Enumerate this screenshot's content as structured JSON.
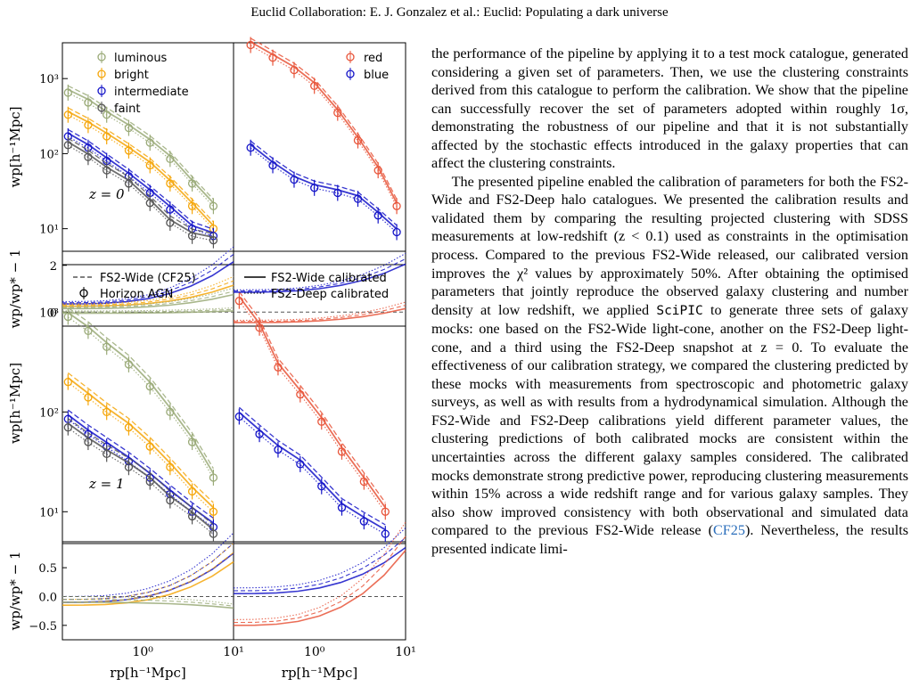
{
  "header": "Euclid Collaboration: E. J. Gonzalez et al.: Euclid: Populating a dark universe",
  "figure": {
    "legend_lum": [
      "luminous",
      "bright",
      "intermediate",
      "faint"
    ],
    "legend_col": [
      "red",
      "blue"
    ],
    "legend_lines": {
      "fs2wide_cf25": "FS2-Wide (CF25)",
      "horizon": "Horizon AGN",
      "fs2wide_cal": "FS2-Wide calibrated",
      "fs2deep_cal": "FS2-Deep calibrated"
    },
    "z_labels": [
      "z = 0",
      "z = 1"
    ],
    "ylabel_main": "wp[h⁻¹Mpc]",
    "ylabel_ratio": "wp/wp* − 1",
    "xlabel": "rp[h⁻¹Mpc]",
    "y_ticks_main": [
      "10¹",
      "10²",
      "10³"
    ],
    "ratio_ticks_top": [
      "0",
      "2"
    ],
    "ratio_ticks_bottom": [
      "−0.5",
      "0.0",
      "0.5"
    ],
    "x_ticks": [
      "10⁰",
      "10¹"
    ],
    "x_ticks_right": [
      "10⁰",
      "10¹"
    ],
    "colors": {
      "luminous": "#9aaa78",
      "bright": "#f5a60a",
      "intermediate": "#1414c8",
      "faint": "#555555",
      "red": "#e8553a",
      "blue": "#1414c8"
    }
  },
  "chart_data": [
    {
      "type": "line",
      "panel": "z=0 luminosity",
      "xlim": [
        0.13,
        10
      ],
      "ylim": [
        5,
        3000
      ],
      "yscale": "log",
      "xscale": "log",
      "x": [
        0.15,
        0.25,
        0.4,
        0.7,
        1.2,
        2,
        3.5,
        6
      ],
      "series": [
        {
          "name": "luminous",
          "values": [
            650,
            480,
            330,
            220,
            140,
            85,
            40,
            20
          ]
        },
        {
          "name": "bright",
          "values": [
            330,
            240,
            170,
            110,
            70,
            40,
            20,
            10
          ]
        },
        {
          "name": "intermediate",
          "values": [
            170,
            120,
            80,
            50,
            30,
            18,
            10,
            8
          ]
        },
        {
          "name": "faint",
          "values": [
            130,
            90,
            60,
            40,
            22,
            12,
            8,
            7
          ]
        }
      ]
    },
    {
      "type": "line",
      "panel": "z=0 colour",
      "xlim": [
        0.13,
        10
      ],
      "ylim": [
        5,
        3000
      ],
      "yscale": "log",
      "xscale": "log",
      "x": [
        0.2,
        0.35,
        0.6,
        1.0,
        1.8,
        3,
        5,
        8
      ],
      "series": [
        {
          "name": "red",
          "values": [
            2800,
            1900,
            1300,
            800,
            350,
            150,
            60,
            20
          ]
        },
        {
          "name": "blue",
          "values": [
            120,
            70,
            45,
            35,
            30,
            25,
            15,
            9
          ]
        }
      ]
    },
    {
      "type": "line",
      "panel": "z=1 luminosity",
      "xlim": [
        0.13,
        10
      ],
      "ylim": [
        5,
        3000
      ],
      "yscale": "log",
      "xscale": "log",
      "x": [
        0.15,
        0.25,
        0.4,
        0.7,
        1.2,
        2,
        3.5,
        6
      ],
      "series": [
        {
          "name": "luminous",
          "values": [
            900,
            650,
            450,
            300,
            180,
            100,
            50,
            22
          ]
        },
        {
          "name": "bright",
          "values": [
            200,
            140,
            100,
            70,
            45,
            28,
            16,
            10
          ]
        },
        {
          "name": "intermediate",
          "values": [
            85,
            60,
            45,
            32,
            22,
            15,
            10,
            7
          ]
        },
        {
          "name": "faint",
          "values": [
            70,
            50,
            38,
            28,
            20,
            13,
            9,
            6
          ]
        }
      ]
    },
    {
      "type": "line",
      "panel": "z=1 colour",
      "xlim": [
        0.13,
        10
      ],
      "ylim": [
        5,
        3000
      ],
      "yscale": "log",
      "xscale": "log",
      "x": [
        0.15,
        0.25,
        0.4,
        0.7,
        1.2,
        2,
        3.5,
        6
      ],
      "series": [
        {
          "name": "red",
          "values": [
            1300,
            700,
            280,
            150,
            80,
            40,
            20,
            10
          ]
        },
        {
          "name": "blue",
          "values": [
            90,
            60,
            42,
            30,
            18,
            11,
            8,
            6
          ]
        }
      ]
    }
  ],
  "body": {
    "p1": "the performance of the pipeline by applying it to a test mock catalogue, generated considering a given set of parameters. Then, we use the clustering constraints derived from this catalogue to perform the calibration. We show that the pipeline can successfully recover the set of parameters adopted within roughly 1σ, demonstrating the robustness of our pipeline and that it is not substantially affected by the stochastic effects introduced in the galaxy properties that can affect the clustering constraints.",
    "p2a": "The presented pipeline enabled the calibration of parameters for both the FS2-Wide and FS2-Deep halo catalogues. We presented the calibration results and validated them by comparing the resulting projected clustering with SDSS measurements at low-redshift (z < 0.1) used as constraints in the optimisation process. Compared to the previous FS2-Wide released, our calibrated version improves the χ² values by approximately 50%. After obtaining the optimised parameters that jointly reproduce the observed galaxy clustering and number density at low redshift, we applied ",
    "p2_code": "SciPIC",
    "p2b": " to generate three sets of galaxy mocks: one based on the FS2-Wide light-cone, another on the FS2-Deep light-cone, and a third using the FS2-Deep snapshot at z = 0. To evaluate the effectiveness of our calibration strategy, we compared the clustering predicted by these mocks with measurements from spectroscopic and photometric galaxy surveys, as well as with results from a hydrodynamical simulation. Although the FS2-Wide and FS2-Deep calibrations yield different parameter values, the clustering predictions of both calibrated mocks are consistent within the uncertainties across the different galaxy samples considered. The calibrated mocks demonstrate strong predictive power, reproducing clustering measurements within 15% across a wide redshift range and for various galaxy samples. They also show improved consistency with both observational and simulated data compared to the previous FS2-Wide release (",
    "p2_cite": "CF25",
    "p2c": "). Nevertheless, the results presented indicate limi-"
  }
}
